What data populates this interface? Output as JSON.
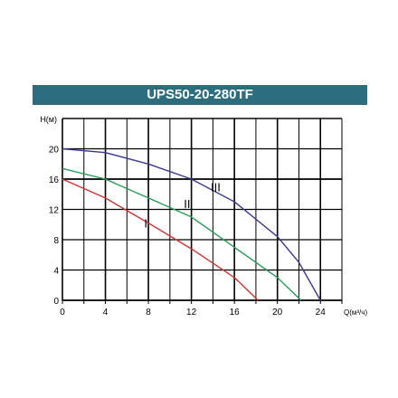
{
  "chart_data": {
    "type": "line",
    "title": "UPS50-20-280TF",
    "ylabel": "H(м)",
    "xlabel": "Q(м³/ч)",
    "xlim": [
      0,
      26
    ],
    "ylim": [
      0,
      24
    ],
    "x_ticks": [
      "0",
      "4",
      "8",
      "12",
      "16",
      "20",
      "24"
    ],
    "y_ticks": [
      "0",
      "4",
      "8",
      "12",
      "16",
      "20"
    ],
    "grid": true,
    "series": [
      {
        "name": "I",
        "color": "#cc3333",
        "x": [
          0,
          4,
          8,
          12,
          16,
          18.2
        ],
        "y": [
          16,
          13.5,
          10.2,
          6.8,
          3,
          0
        ]
      },
      {
        "name": "II",
        "color": "#2a9a5a",
        "x": [
          0,
          4,
          8,
          12,
          16,
          20,
          22.2
        ],
        "y": [
          17.4,
          16,
          13.5,
          11,
          7,
          3,
          0
        ]
      },
      {
        "name": "III",
        "color": "#3a3a8c",
        "x": [
          0,
          4,
          8,
          12,
          16,
          20,
          22,
          24
        ],
        "y": [
          20,
          19.5,
          18,
          16,
          13,
          8.4,
          5,
          0
        ]
      }
    ],
    "annotations": [
      "I",
      "II",
      "III"
    ]
  }
}
